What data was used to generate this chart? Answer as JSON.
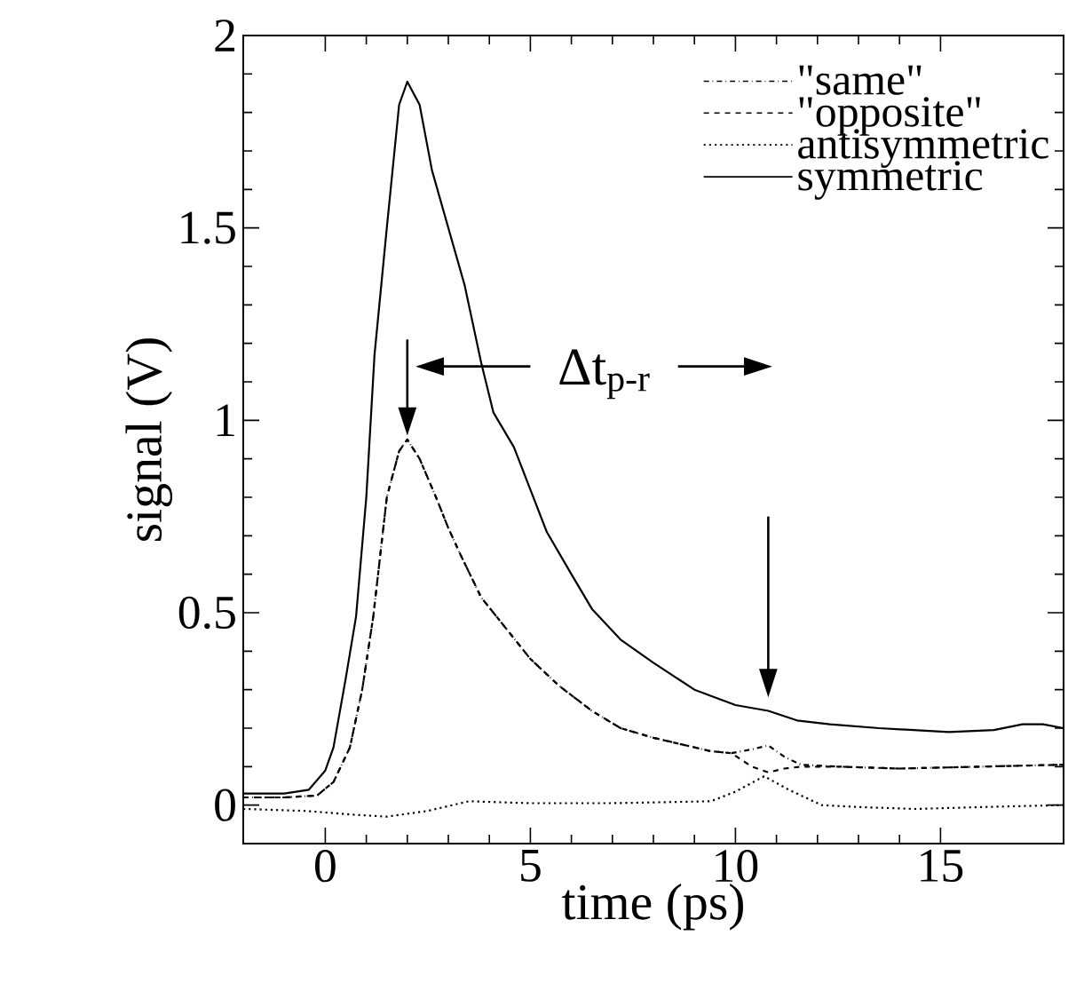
{
  "chart_data": {
    "type": "line",
    "xlabel": "time (ps)",
    "ylabel": "signal (V)",
    "xlim": [
      -2,
      18
    ],
    "ylim": [
      -0.1,
      2
    ],
    "xticks": [
      0,
      5,
      10,
      15
    ],
    "yticks": [
      0,
      0.5,
      1,
      1.5,
      2
    ],
    "legend": "top right",
    "grid": false,
    "marker": "none",
    "annotations": [
      "Δt$_{p-r}$"
    ],
    "series": [
      {
        "name": "\"same\"",
        "color": "#000000",
        "line_style": "dashdot",
        "x": [
          -2,
          -1,
          -0.2,
          0.2,
          0.6,
          0.9,
          1.17,
          1.5,
          1.8,
          2.0,
          2.3,
          2.7,
          3.0,
          3.3,
          3.8,
          4.4,
          5.0,
          5.7,
          6.5,
          7.2,
          8.0,
          8.8,
          9.4,
          9.9,
          10.4,
          10.8,
          11.2,
          11.6,
          12.5,
          14,
          16,
          18
        ],
        "values": [
          0.02,
          0.02,
          0.025,
          0.06,
          0.15,
          0.3,
          0.49,
          0.8,
          0.92,
          0.95,
          0.9,
          0.8,
          0.72,
          0.65,
          0.54,
          0.46,
          0.38,
          0.31,
          0.245,
          0.2,
          0.175,
          0.155,
          0.14,
          0.135,
          0.145,
          0.155,
          0.125,
          0.105,
          0.1,
          0.095,
          0.1,
          0.105
        ]
      },
      {
        "name": "\"opposite\"",
        "color": "#000000",
        "line_style": "dashed",
        "x": [
          -2,
          -1,
          -0.2,
          0.2,
          0.6,
          0.9,
          1.17,
          1.5,
          1.8,
          2.0,
          2.3,
          2.7,
          3.0,
          3.3,
          3.8,
          4.4,
          5.0,
          5.7,
          6.5,
          7.2,
          8.0,
          8.8,
          9.4,
          9.9,
          10.4,
          10.8,
          11.2,
          11.6,
          12.5,
          14,
          16,
          18
        ],
        "values": [
          0.02,
          0.02,
          0.025,
          0.06,
          0.15,
          0.3,
          0.49,
          0.8,
          0.92,
          0.95,
          0.9,
          0.8,
          0.72,
          0.65,
          0.54,
          0.46,
          0.38,
          0.31,
          0.245,
          0.2,
          0.175,
          0.155,
          0.14,
          0.135,
          0.1,
          0.085,
          0.095,
          0.1,
          0.1,
          0.095,
          0.1,
          0.105
        ]
      },
      {
        "name": "antisymmetric",
        "color": "#000000",
        "line_style": "dotted",
        "x": [
          -2,
          -0.5,
          0.7,
          1.5,
          2.5,
          3.5,
          5,
          7,
          9.4,
          10.0,
          10.7,
          11.3,
          12.1,
          13,
          14.4,
          16,
          18
        ],
        "values": [
          -0.01,
          -0.015,
          -0.025,
          -0.03,
          -0.015,
          0.01,
          0.005,
          0.005,
          0.01,
          0.035,
          0.075,
          0.04,
          0.0,
          -0.005,
          -0.01,
          -0.005,
          0.0
        ]
      },
      {
        "name": "symmetric",
        "color": "#000000",
        "line_style": "solid",
        "x": [
          -2,
          -1,
          -0.4,
          0,
          0.2,
          0.5,
          0.75,
          1.0,
          1.2,
          1.5,
          1.8,
          2.0,
          2.3,
          2.6,
          3.0,
          3.4,
          3.8,
          4.1,
          4.6,
          5.0,
          5.4,
          6.0,
          6.5,
          7.2,
          8.0,
          9.0,
          10.0,
          10.8,
          11.5,
          12.3,
          13.5,
          15.2,
          16.3,
          17.0,
          17.5,
          18
        ],
        "values": [
          0.03,
          0.03,
          0.04,
          0.09,
          0.15,
          0.33,
          0.49,
          0.8,
          1.17,
          1.5,
          1.82,
          1.88,
          1.82,
          1.65,
          1.5,
          1.35,
          1.15,
          1.02,
          0.93,
          0.82,
          0.71,
          0.6,
          0.51,
          0.43,
          0.37,
          0.3,
          0.26,
          0.245,
          0.22,
          0.21,
          0.2,
          0.19,
          0.195,
          0.21,
          0.21,
          0.2
        ]
      }
    ]
  }
}
